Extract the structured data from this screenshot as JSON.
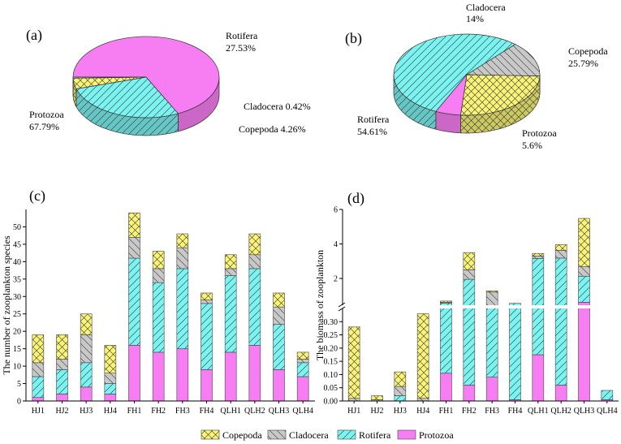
{
  "colors": {
    "copepoda": "#f9f477",
    "cladocera": "#c8c8c8",
    "rotifera": "#7bf3f0",
    "protozoa": "#f77ef2",
    "line": "#333333"
  },
  "legend": {
    "entries": [
      "Copepoda",
      "Cladocera",
      "Rotifera",
      "Protozoa"
    ]
  },
  "chart_data": [
    {
      "id": "a",
      "type": "pie",
      "panel_label": "(a)",
      "slices": [
        {
          "name": "Protozoa",
          "value": 67.79,
          "label": "Protozoa",
          "value_label": "67.79%"
        },
        {
          "name": "Rotifera",
          "value": 27.53,
          "label": "Rotifera",
          "value_label": "27.53%"
        },
        {
          "name": "Copepoda",
          "value": 4.26,
          "label": "Copepoda 4.26%",
          "value_label": ""
        },
        {
          "name": "Cladocera",
          "value": 0.42,
          "label": "Cladocera 0.42%",
          "value_label": ""
        }
      ]
    },
    {
      "id": "b",
      "type": "pie",
      "panel_label": "(b)",
      "slices": [
        {
          "name": "Rotifera",
          "value": 54.61,
          "label": "Rotifera",
          "value_label": "54.61%"
        },
        {
          "name": "Cladocera",
          "value": 14,
          "label": "Cladocera",
          "value_label": "14%"
        },
        {
          "name": "Copepoda",
          "value": 25.79,
          "label": "Copepoda",
          "value_label": "25.79%"
        },
        {
          "name": "Protozoa",
          "value": 5.6,
          "label": "Protozoa",
          "value_label": "5.6%"
        }
      ]
    },
    {
      "id": "c",
      "type": "bar",
      "stacked": true,
      "panel_label": "(c)",
      "ylabel": "The number of zooplankton species",
      "xlabel": "",
      "categories": [
        "HJ1",
        "HJ2",
        "HJ3",
        "HJ4",
        "FH1",
        "FH2",
        "FH3",
        "FH4",
        "QLH1",
        "QLH2",
        "QLH3",
        "QLH4"
      ],
      "ylim": [
        0,
        55
      ],
      "yticks": [
        0,
        5,
        10,
        15,
        20,
        25,
        30,
        35,
        40,
        45,
        50
      ],
      "series": [
        {
          "name": "Protozoa",
          "values": [
            1,
            2,
            4,
            2,
            16,
            14,
            15,
            9,
            14,
            16,
            9,
            7
          ]
        },
        {
          "name": "Rotifera",
          "values": [
            6,
            7,
            7,
            3,
            25,
            20,
            23,
            19,
            22,
            22,
            13,
            4
          ]
        },
        {
          "name": "Cladocera",
          "values": [
            4,
            3,
            8,
            3,
            6,
            4,
            6,
            1,
            2,
            4,
            5,
            1
          ]
        },
        {
          "name": "Copepoda",
          "values": [
            8,
            7,
            6,
            8,
            7,
            5,
            4,
            2,
            4,
            6,
            4,
            2
          ]
        }
      ]
    },
    {
      "id": "d",
      "type": "bar",
      "stacked": true,
      "broken_axis": true,
      "panel_label": "(d)",
      "ylabel": "The biomass of zooplankton",
      "xlabel": "",
      "categories": [
        "HJ1",
        "HJ2",
        "HJ3",
        "HJ4",
        "FH1",
        "FH2",
        "FH3",
        "FH4",
        "QLH1",
        "QLH2",
        "QLH3",
        "QLH4"
      ],
      "lower_ylim": [
        0,
        0.35
      ],
      "lower_yticks": [
        "0.00",
        "0.05",
        "0.10",
        "0.15",
        "0.20",
        "0.25",
        "0.30"
      ],
      "upper_ylim": [
        0.45,
        6
      ],
      "upper_yticks": [
        "2",
        "4",
        "6"
      ],
      "series": [
        {
          "name": "Protozoa",
          "values": [
            0,
            0,
            0,
            0,
            0.105,
            0.06,
            0.09,
            0.005,
            0.175,
            0.06,
            0.62,
            0.005
          ]
        },
        {
          "name": "Rotifera",
          "values": [
            0,
            0,
            0.02,
            0,
            0.465,
            1.89,
            0.33,
            0.555,
            2.985,
            3.12,
            1.51,
            0.035
          ]
        },
        {
          "name": "Cladocera",
          "values": [
            0.01,
            0.005,
            0.035,
            0.01,
            0.05,
            0.55,
            0.79,
            0,
            0.14,
            0.45,
            0.55,
            0
          ]
        },
        {
          "name": "Copepoda",
          "values": [
            0.27,
            0.015,
            0.055,
            0.32,
            0.07,
            1.0,
            0.07,
            0,
            0.15,
            0.33,
            2.8,
            0
          ]
        }
      ]
    }
  ]
}
